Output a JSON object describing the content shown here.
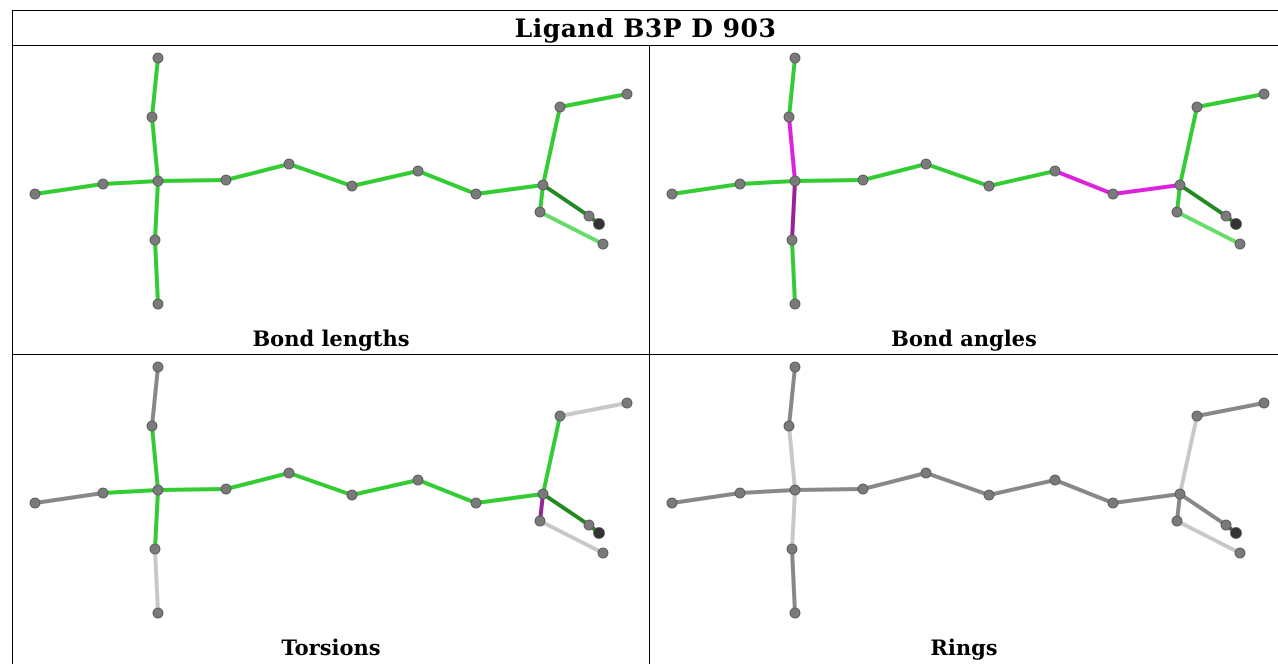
{
  "title": "Ligand B3P D 903",
  "panels": [
    {
      "id": "bond-lengths",
      "label": "Bond lengths",
      "mode": "bond-lengths"
    },
    {
      "id": "bond-angles",
      "label": "Bond angles",
      "mode": "bond-angles"
    },
    {
      "id": "torsions",
      "label": "Torsions",
      "mode": "torsions"
    },
    {
      "id": "rings",
      "label": "Rings",
      "mode": "rings"
    }
  ],
  "colors": {
    "green": "#33cc33",
    "light_green": "#66dd66",
    "dark_green": "#228822",
    "magenta": "#dd22dd",
    "dark_magenta": "#992299",
    "gray": "#888888",
    "light_gray": "#c8c8c8",
    "atom": "#7a7a7a",
    "dark_atom": "#333333"
  }
}
